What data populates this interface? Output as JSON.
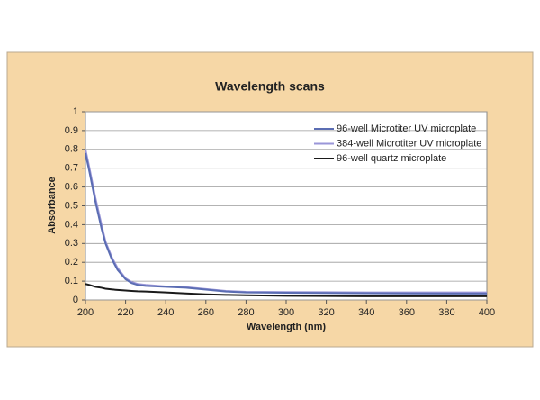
{
  "chart_data": {
    "type": "line",
    "title": "Wavelength scans",
    "x_label": "Wavelength (nm)",
    "y_label": "Absorbance",
    "x": [
      200,
      202,
      205,
      208,
      210,
      213,
      216,
      220,
      223,
      226,
      230,
      240,
      250,
      260,
      270,
      280,
      300,
      320,
      340,
      360,
      380,
      400
    ],
    "series": [
      {
        "name": "96-well Microtiter UV microplate",
        "color": "#5b6db3",
        "values": [
          0.78,
          0.68,
          0.52,
          0.38,
          0.3,
          0.22,
          0.16,
          0.11,
          0.09,
          0.08,
          0.075,
          0.07,
          0.065,
          0.055,
          0.045,
          0.04,
          0.038,
          0.037,
          0.036,
          0.035,
          0.034,
          0.034
        ]
      },
      {
        "name": "384-well Microtiter UV microplate",
        "color": "#9a96d8",
        "values": [
          0.8,
          0.7,
          0.54,
          0.4,
          0.31,
          0.23,
          0.17,
          0.115,
          0.095,
          0.085,
          0.08,
          0.072,
          0.068,
          0.058,
          0.048,
          0.043,
          0.042,
          0.041,
          0.04,
          0.04,
          0.04,
          0.04
        ]
      },
      {
        "name": "96-well quartz microplate",
        "color": "#1a1a1a",
        "values": [
          0.085,
          0.08,
          0.07,
          0.065,
          0.06,
          0.056,
          0.053,
          0.05,
          0.048,
          0.046,
          0.045,
          0.04,
          0.035,
          0.03,
          0.027,
          0.025,
          0.022,
          0.021,
          0.02,
          0.02,
          0.02,
          0.02
        ]
      }
    ],
    "xlim": [
      200,
      400
    ],
    "xticks": [
      200,
      220,
      240,
      260,
      280,
      300,
      320,
      340,
      360,
      380,
      400
    ],
    "ylim": [
      0,
      1
    ],
    "yticks": [
      0,
      0.1,
      0.2,
      0.3,
      0.4,
      0.5,
      0.6,
      0.7,
      0.8,
      0.9,
      1
    ],
    "grid": true,
    "legend": "upper-right"
  }
}
